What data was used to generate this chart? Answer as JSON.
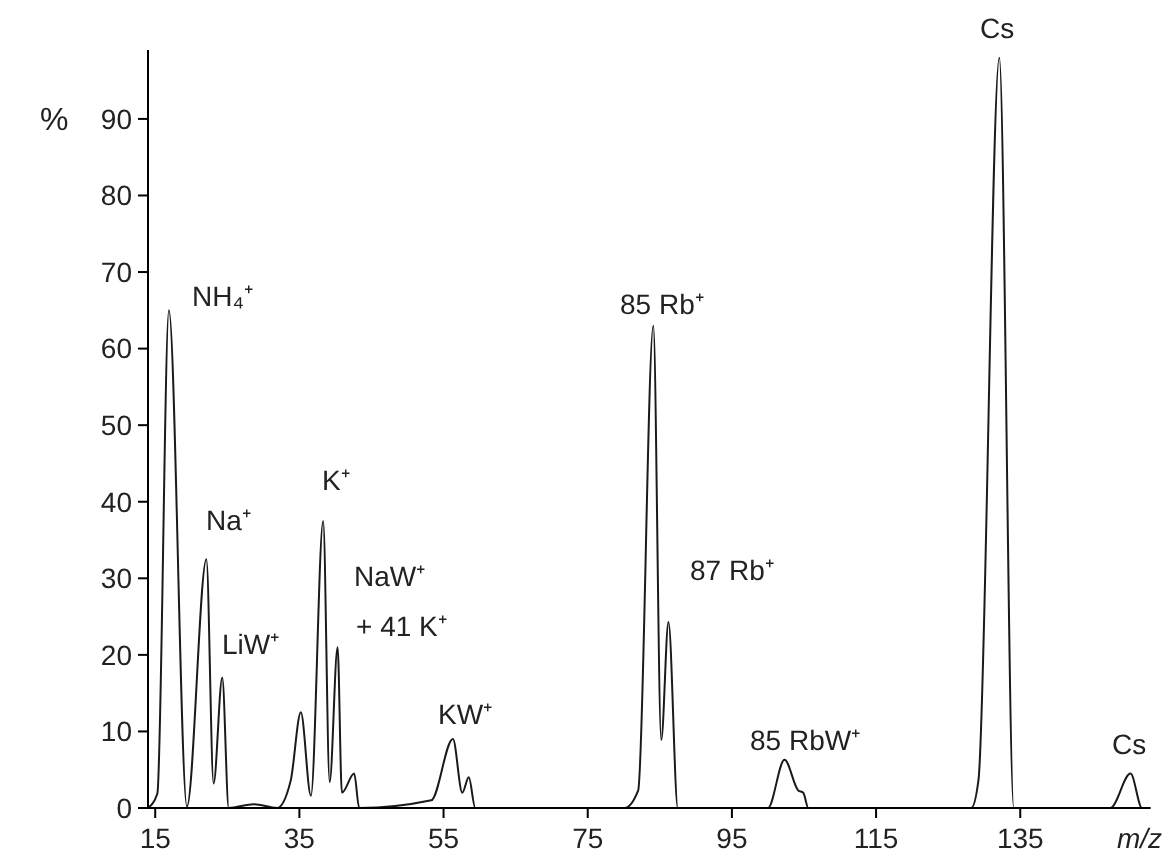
{
  "chart_data": {
    "type": "line",
    "ylabel": "%",
    "xlabel": "m/z",
    "x": [
      14,
      15.3,
      16.9,
      19.4,
      22.1,
      23.1,
      24.3,
      25.2,
      28.7,
      31.9,
      33.8,
      35.2,
      36.6,
      38.3,
      39.2,
      40.3,
      40.9,
      42.6,
      43.3,
      53.3,
      56.3,
      57.6,
      58.5,
      59.4,
      80.1,
      82,
      84.1,
      85.2,
      86.2,
      87.5,
      100,
      102.3,
      104.2,
      104.9,
      105.6,
      128.2,
      129.2,
      132.1,
      134.1,
      147.5,
      150.3,
      151.9,
      153
    ],
    "series": [
      {
        "color": "#1a1a1a",
        "values": [
          0,
          1.9,
          65,
          0.2,
          32.5,
          3.2,
          17,
          0,
          0.5,
          0,
          3.6,
          12.5,
          1.6,
          37.5,
          3.4,
          21,
          2,
          4.5,
          0,
          1,
          9,
          2,
          4,
          0,
          0,
          2.3,
          63,
          8.9,
          24.3,
          0,
          0,
          6.3,
          2.3,
          2,
          0,
          0,
          3.6,
          98,
          0,
          0,
          4.5,
          0,
          0
        ]
      }
    ],
    "xlim": [
      14,
      153
    ],
    "ylim": [
      0,
      99
    ],
    "xticks": [
      15,
      35,
      55,
      75,
      95,
      115,
      135
    ],
    "yticks": [
      0,
      10,
      20,
      30,
      40,
      50,
      60,
      70,
      80,
      90
    ],
    "grid": false,
    "marker": "none",
    "line_style": "solid",
    "annotations": [
      "NH₄⁺",
      "Na⁺",
      "LiW⁺",
      "K⁺",
      "NaW⁺",
      "+  41 K⁺",
      "KW⁺",
      "85 Rb⁺",
      "87 Rb⁺",
      "85 RbW⁺",
      "Cs",
      "Cs"
    ]
  }
}
